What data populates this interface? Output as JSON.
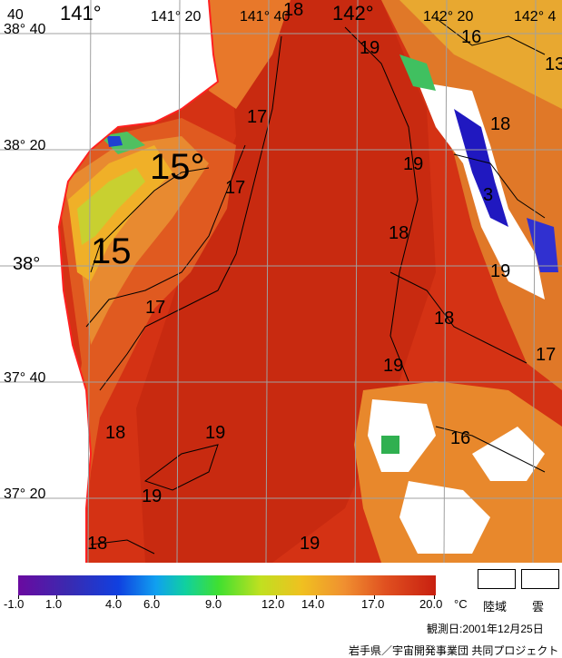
{
  "map": {
    "lat_labels": [
      "38° 40",
      "38° 20",
      "38°",
      "37° 40",
      "37° 20"
    ],
    "lon_labels": [
      "141°",
      "141° 20",
      "141° 40",
      "142°",
      "142° 20",
      "142° 4"
    ],
    "corner_label": "40",
    "isotherm_labels": [
      "15°",
      "15",
      "17",
      "17",
      "17",
      "17",
      "18",
      "18",
      "18",
      "18",
      "18",
      "18",
      "19",
      "19",
      "19",
      "19",
      "19",
      "19",
      "19",
      "16",
      "16",
      "13",
      "3"
    ]
  },
  "legend": {
    "ticks": [
      "-1.0",
      "1.0",
      "4.0",
      "6.0",
      "9.0",
      "12.0",
      "14.0",
      "17.0",
      "20.0"
    ],
    "unit": "°C",
    "land_label": "陸域",
    "cloud_label": "雲",
    "colors": [
      "#6a0aa0",
      "#1040e0",
      "#10d0a0",
      "#40e030",
      "#f0c020",
      "#e05020",
      "#c82010"
    ]
  },
  "footer": {
    "observation_date": "観測日:2001年12月25日",
    "credit": "岩手県／宇宙開発事業団  共同プロジェクト"
  }
}
